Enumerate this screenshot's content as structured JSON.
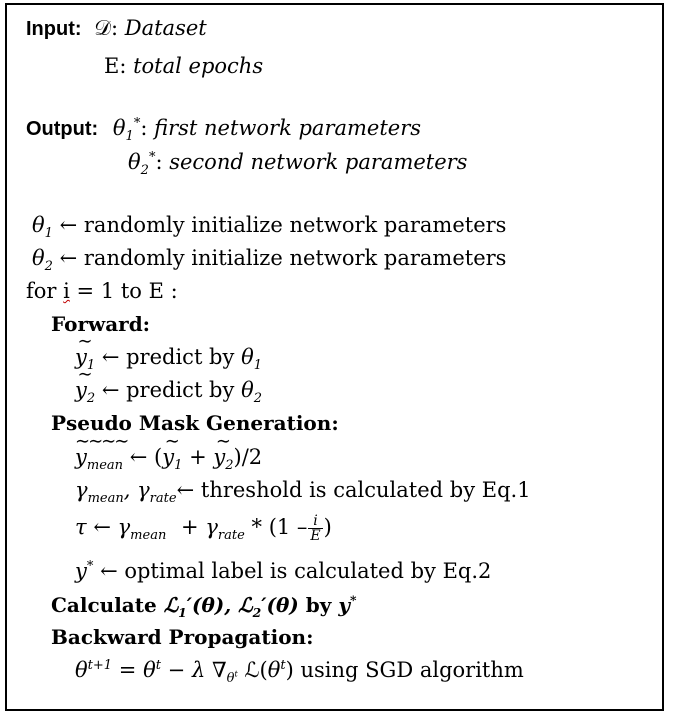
{
  "input": {
    "label": "Input:",
    "dataset_symbol": "𝒟",
    "dataset_desc": "Dataset",
    "epochs_symbol": "E:",
    "epochs_desc": "total epochs"
  },
  "output": {
    "label": "Output:",
    "theta1_desc": "first network parameters",
    "theta2_desc": "second network parameters"
  },
  "init": {
    "line1": "← randomly initialize network parameters",
    "line2": "← randomly initialize network parameters"
  },
  "loop": {
    "for_kw": "for",
    "iter_var": "i",
    "range": " = 1 to E :"
  },
  "forward": {
    "heading": "Forward:",
    "pred1": "← predict by",
    "pred2": "← predict by"
  },
  "pseudo": {
    "heading": "Pseudo Mask Generation:",
    "mean_tail": ")/2",
    "threshold_text": "threshold is calculated by Eq.1",
    "optimal_text": "← optimal label is calculated by Eq.2"
  },
  "calc": {
    "prefix": "Calculate",
    "by": "by"
  },
  "backward": {
    "heading": "Backward Propagation:",
    "update_tail": "using SGD algorithm"
  }
}
